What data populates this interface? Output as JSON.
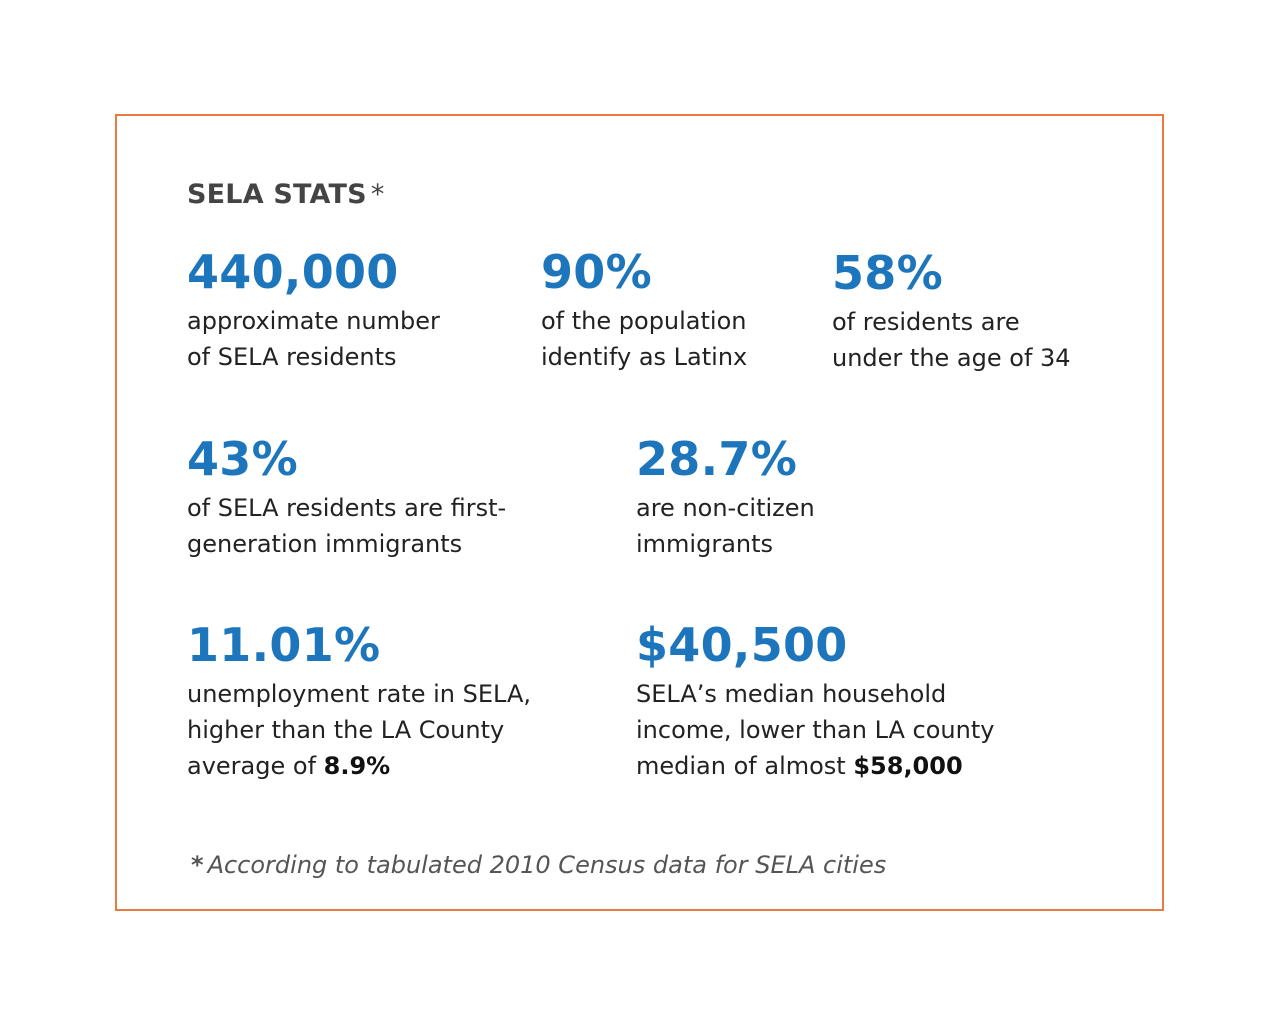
{
  "title": "SELA STATS",
  "asterisk": "*",
  "stats": [
    {
      "value": "440,000",
      "lines": [
        "approximate number",
        "of SELA residents"
      ]
    },
    {
      "value": "90%",
      "lines": [
        "of the population",
        "identify as Latinx"
      ]
    },
    {
      "value": "58%",
      "lines": [
        "of residents are",
        "under the age of 34"
      ]
    },
    {
      "value": "43%",
      "lines": [
        "of SELA residents are first-",
        "generation immigrants"
      ]
    },
    {
      "value": "28.7%",
      "lines": [
        "are non-citizen",
        "immigrants"
      ]
    },
    {
      "value": "11.01%",
      "lines": [
        "unemployment rate in SELA,",
        "higher than the LA County",
        "average of "
      ],
      "emphasis": "8.9%"
    },
    {
      "value": "$40,500",
      "lines": [
        "SELA’s median household",
        "income, lower than LA county",
        "median of almost "
      ],
      "emphasis": "$58,000"
    }
  ],
  "footnote": "According to tabulated 2010 Census data for SELA cities",
  "colors": {
    "accent": "#1d76bb",
    "border": "#ea7a3f",
    "title": "#444444"
  }
}
